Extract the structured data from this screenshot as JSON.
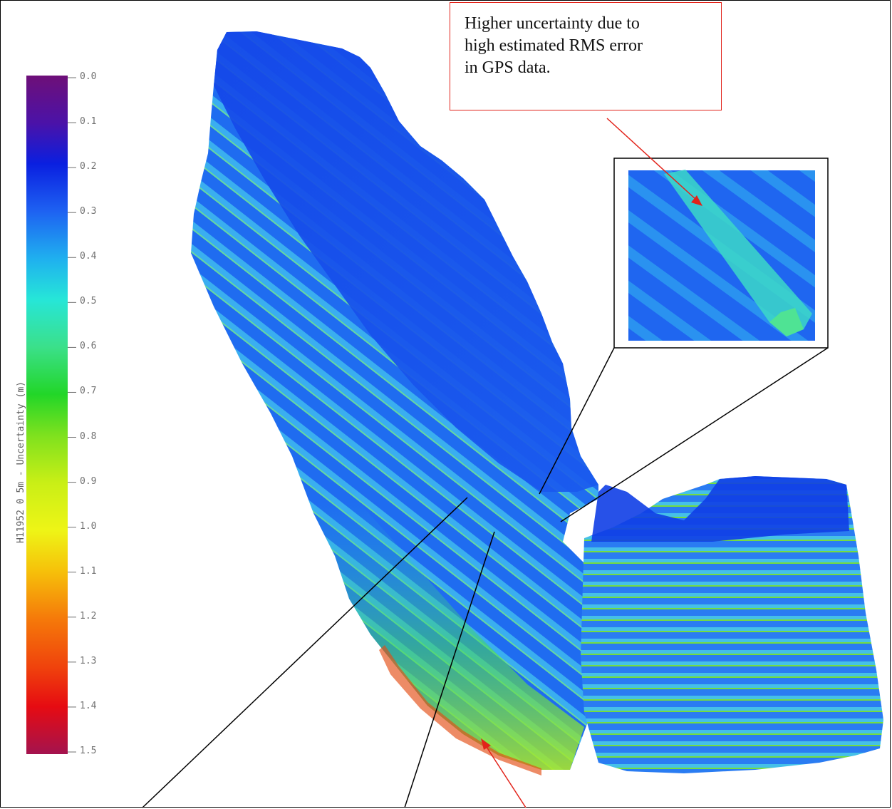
{
  "legend": {
    "title": "H11952 0 5m - Uncertainty (m)",
    "ticks": [
      "0.0",
      "0.1",
      "0.2",
      "0.3",
      "0.4",
      "0.5",
      "0.6",
      "0.7",
      "0.8",
      "0.9",
      "1.0",
      "1.1",
      "1.2",
      "1.3",
      "1.4",
      "1.5"
    ],
    "min": 0.0,
    "max": 1.5,
    "colors": [
      "#6e0f78",
      "#4b12a8",
      "#0a1fe0",
      "#1e62f2",
      "#1fb0ef",
      "#26e6d8",
      "#3be08a",
      "#22d628",
      "#7ee11e",
      "#c9ef16",
      "#eef516",
      "#f6c10a",
      "#f57a0a",
      "#f0440c",
      "#e60b12",
      "#a4134e"
    ]
  },
  "callout": {
    "lines": [
      "Higher uncertainty due to",
      "high estimated RMS error",
      "in GPS data."
    ],
    "border_color": "#e2231a"
  },
  "map": {
    "surface_colors": {
      "deep": "#0f3ee6",
      "mid": "#1f6cf0",
      "stripe_light": "#3aaef0",
      "stripe_high": "#66d832",
      "edge": "#d9ef22"
    }
  }
}
